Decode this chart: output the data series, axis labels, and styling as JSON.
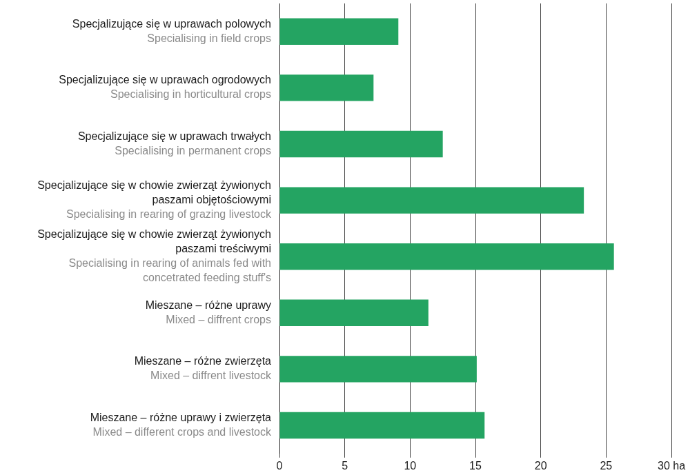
{
  "chart_data": {
    "type": "bar",
    "orientation": "horizontal",
    "categories": [
      "Specjalizujące się w uprawach polowych\nSpecialising in field crops",
      "Specjalizujące się w uprawach ogrodowych\nSpecialising in horticultural crops",
      "Specjalizujące się w uprawach trwałych\nSpecialising in permanent crops",
      "Specjalizujące się w chowie zwierząt żywionych paszami objętościowymi\nSpecialising in rearing of grazing livestock",
      "Specjalizujące się w chowie zwierząt żywionych paszami treściwymi\nSpecialising in rearing of animals fed with concetrated feeding stuff's",
      "Mieszane – różne uprawy\nMixed – diffrent crops",
      "Mieszane – różne zwierzęta\nMixed – diffrent livestock",
      "Mieszane – różne uprawy i zwierzęta\nMixed – different crops and livestock"
    ],
    "values": [
      9.1,
      7.2,
      12.5,
      23.3,
      25.6,
      11.4,
      15.1,
      15.7
    ],
    "color": "#24a462",
    "xlim": [
      0,
      30
    ],
    "xticks": [
      0,
      5,
      10,
      15,
      20,
      25,
      {
        "value": 30,
        "label": "30 ha"
      }
    ],
    "grid": "x",
    "legend": false
  }
}
